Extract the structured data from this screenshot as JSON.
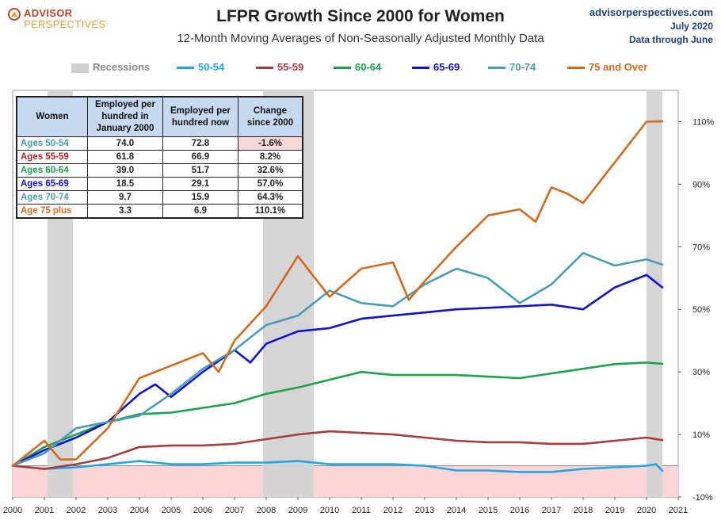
{
  "header": {
    "logo_line1": "ADVISOR",
    "logo_line2": "PERSPECTIVES",
    "site": "advisorperspectives.com",
    "date_line1": "July 2020",
    "date_line2": "Data through June"
  },
  "table": {
    "headers": [
      "Women",
      "Employed per hundred in January 2000",
      "Employed per hundred now",
      "Change since 2000"
    ],
    "rows": [
      {
        "label": "Ages 50-54",
        "jan2000": "74.0",
        "now": "72.8",
        "change": "-1.6%",
        "color": "#4a9bb5"
      },
      {
        "label": "Ages 55-59",
        "jan2000": "61.8",
        "now": "66.9",
        "change": "8.2%",
        "color": "#b22222"
      },
      {
        "label": "Ages 60-64",
        "jan2000": "39.0",
        "now": "51.7",
        "change": "32.6%",
        "color": "#1aa34a"
      },
      {
        "label": "Ages 65-69",
        "jan2000": "18.5",
        "now": "29.1",
        "change": "57.0%",
        "color": "#1010d0"
      },
      {
        "label": "Ages 70-74",
        "jan2000": "9.7",
        "now": "15.9",
        "change": "64.3%",
        "color": "#4a9bb5"
      },
      {
        "label": "Age 75 plus",
        "jan2000": "3.3",
        "now": "6.9",
        "change": "110.1%",
        "color": "#d2691e"
      }
    ]
  },
  "chart_data": {
    "type": "line",
    "title": "LFPR Growth Since 2000 for Women",
    "subtitle": "12-Month Moving Averages of Non-Seasonally Adjusted Monthly Data",
    "xlim": [
      2000,
      2021
    ],
    "ylim": [
      -10,
      120
    ],
    "x_ticks": [
      2000,
      2001,
      2002,
      2003,
      2004,
      2005,
      2006,
      2007,
      2008,
      2009,
      2010,
      2011,
      2012,
      2013,
      2014,
      2015,
      2016,
      2017,
      2018,
      2019,
      2020,
      2021
    ],
    "y_ticks": [
      -10,
      10,
      30,
      50,
      70,
      90,
      110
    ],
    "y_tick_labels": [
      "-10%",
      "10%",
      "30%",
      "50%",
      "70%",
      "90%",
      "110%"
    ],
    "negative_region_color": "#fbd5d5",
    "recessions": [
      {
        "label": "Recessions",
        "start": 2001.1,
        "end": 2001.9
      },
      {
        "start": 2007.9,
        "end": 2009.5
      },
      {
        "start": 2020.0,
        "end": 2020.5
      }
    ],
    "recession_color": "#d3d3d3",
    "series": [
      {
        "name": "50-54",
        "color": "#1ea7e6",
        "x": [
          2000,
          2001,
          2002,
          2003,
          2004,
          2005,
          2006,
          2007,
          2008,
          2009,
          2010,
          2011,
          2012,
          2013,
          2014,
          2015,
          2016,
          2017,
          2018,
          2019,
          2020,
          2020.3,
          2020.5
        ],
        "y": [
          0,
          -1,
          -0.5,
          0.5,
          1.5,
          0.5,
          0.5,
          1,
          1,
          1.5,
          0.5,
          0.5,
          0.5,
          0,
          -1.5,
          -1.5,
          -2,
          -2,
          -1,
          -0.5,
          0,
          0.5,
          -1.6
        ]
      },
      {
        "name": "55-59",
        "color": "#a83c3c",
        "x": [
          2000,
          2001,
          2002,
          2003,
          2004,
          2005,
          2006,
          2007,
          2008,
          2009,
          2010,
          2011,
          2012,
          2013,
          2014,
          2015,
          2016,
          2017,
          2018,
          2019,
          2020,
          2020.5
        ],
        "y": [
          0,
          -1,
          0.5,
          2.5,
          6,
          6.5,
          6.5,
          7,
          8.5,
          10,
          11,
          10.5,
          10,
          9,
          8,
          7.5,
          7.5,
          7,
          7,
          8,
          9,
          8.2
        ]
      },
      {
        "name": "60-64",
        "color": "#1aa34a",
        "x": [
          2000,
          2001,
          2002,
          2003,
          2004,
          2005,
          2006,
          2007,
          2008,
          2009,
          2010,
          2011,
          2012,
          2013,
          2014,
          2015,
          2016,
          2017,
          2018,
          2019,
          2020,
          2020.5
        ],
        "y": [
          0,
          6,
          10,
          14,
          16.5,
          17,
          18.5,
          20,
          23,
          25,
          27.5,
          30,
          29,
          29,
          29,
          28.5,
          28,
          29.5,
          31,
          32.5,
          33,
          32.6
        ]
      },
      {
        "name": "65-69",
        "color": "#1010d0",
        "x": [
          2000,
          2001,
          2002,
          2003,
          2004,
          2004.5,
          2005,
          2006,
          2007,
          2007.5,
          2008,
          2009,
          2010,
          2011,
          2012,
          2013,
          2014,
          2015,
          2016,
          2017,
          2018,
          2019,
          2020,
          2020.5
        ],
        "y": [
          0,
          5,
          9,
          14,
          23,
          26,
          22,
          30,
          37,
          33,
          39,
          43,
          44,
          47,
          48,
          49,
          50,
          50.5,
          51,
          51.5,
          50,
          57,
          61,
          57
        ]
      },
      {
        "name": "70-74",
        "color": "#4a9bb5",
        "x": [
          2000,
          2001,
          2002,
          2003,
          2004,
          2005,
          2006,
          2007,
          2008,
          2009,
          2010,
          2011,
          2012,
          2013,
          2014,
          2015,
          2016,
          2017,
          2018,
          2019,
          2020,
          2020.5
        ],
        "y": [
          0,
          4,
          12,
          14,
          16,
          23,
          31,
          37,
          45,
          48,
          56,
          52,
          51,
          58,
          63,
          60,
          52,
          58,
          68,
          64,
          66,
          64.3
        ]
      },
      {
        "name": "75 and Over",
        "color": "#d2691e",
        "x": [
          2000,
          2001,
          2001.5,
          2002,
          2003,
          2004,
          2005,
          2006,
          2006.5,
          2007,
          2008,
          2009,
          2010,
          2011,
          2012,
          2012.5,
          2013,
          2014,
          2015,
          2016,
          2016.5,
          2017,
          2017.5,
          2018,
          2019,
          2020,
          2020.5
        ],
        "y": [
          0,
          8,
          2,
          2,
          12,
          28,
          32,
          36,
          30,
          40,
          51,
          67,
          54,
          63,
          65,
          53,
          59,
          70,
          80,
          82,
          78,
          89,
          87,
          84,
          97,
          110,
          110.1
        ]
      }
    ]
  }
}
